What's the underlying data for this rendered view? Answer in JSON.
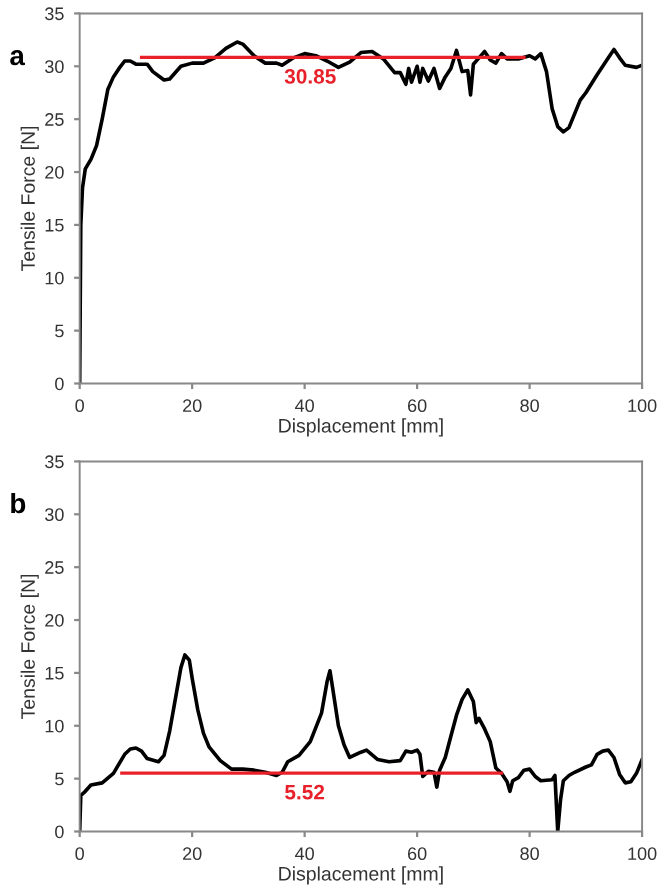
{
  "chart_data": [
    {
      "type": "line",
      "title": "a",
      "xlabel": "Displacement [mm]",
      "ylabel": "Tensile Force [N]",
      "xlim": [
        0,
        100
      ],
      "ylim": [
        0,
        35
      ],
      "xticks": [
        0,
        20,
        40,
        60,
        80,
        100
      ],
      "yticks": [
        0,
        5,
        10,
        15,
        20,
        25,
        30,
        35
      ],
      "grid": false,
      "series": [
        {
          "color": "#000000",
          "x": [
            0,
            0.2,
            0.5,
            1,
            2,
            3,
            4,
            5,
            6,
            7,
            8,
            9,
            10,
            12,
            13,
            15,
            16,
            18,
            20,
            22,
            24,
            26,
            28,
            29,
            31,
            33,
            35,
            36,
            38,
            40,
            42,
            44,
            46,
            48,
            50,
            52,
            54,
            56,
            57,
            58,
            58.5,
            59,
            60,
            60.5,
            61,
            62,
            63,
            64,
            65,
            66,
            67,
            68,
            69,
            69.5,
            70,
            71,
            72,
            73,
            74,
            75,
            76,
            78,
            80,
            81,
            82,
            83,
            84,
            85,
            86,
            87,
            88,
            89,
            90,
            92,
            94,
            95,
            96,
            97,
            99,
            100
          ],
          "values": [
            0,
            15,
            18.5,
            20.3,
            21.2,
            22.5,
            25,
            27.8,
            29,
            29.8,
            30.5,
            30.5,
            30.2,
            30.2,
            29.5,
            28.7,
            28.8,
            30,
            30.3,
            30.3,
            30.8,
            31.7,
            32.3,
            32.1,
            31,
            30.3,
            30.3,
            30.1,
            30.8,
            31.2,
            31,
            30.5,
            29.9,
            30.4,
            31.3,
            31.4,
            30.7,
            29.4,
            29.4,
            28.3,
            29.8,
            28.5,
            30,
            28.5,
            29.8,
            28.6,
            29.8,
            27.9,
            29,
            29.8,
            31.5,
            29.5,
            29.6,
            27.3,
            30.2,
            30.8,
            31.4,
            30.6,
            30.3,
            31.2,
            30.7,
            30.7,
            31,
            30.7,
            31.2,
            29.5,
            26,
            24.3,
            23.8,
            24.2,
            25.5,
            26.8,
            27.5,
            29.2,
            30.8,
            31.6,
            30.8,
            30.1,
            29.9,
            30.1
          ]
        },
        {
          "color": "#e8202a",
          "x": [
            11,
            79
          ],
          "values": [
            30.85,
            30.85
          ]
        }
      ],
      "annotations": [
        {
          "text": "30.85",
          "x": 41,
          "y": 30.85
        }
      ]
    },
    {
      "type": "line",
      "title": "b",
      "xlabel": "Displacement [mm]",
      "ylabel": "Tensile Force [N]",
      "xlim": [
        0,
        100
      ],
      "ylim": [
        0,
        35
      ],
      "xticks": [
        0,
        20,
        40,
        60,
        80,
        100
      ],
      "yticks": [
        0,
        5,
        10,
        15,
        20,
        25,
        30,
        35
      ],
      "grid": false,
      "series": [
        {
          "color": "#000000",
          "x": [
            0,
            0.2,
            1,
            2,
            4,
            6,
            8,
            9,
            10,
            11,
            12,
            14,
            15,
            16,
            17,
            18,
            18.7,
            19.5,
            20,
            21,
            22,
            23,
            25,
            27,
            29,
            31,
            33,
            35,
            36,
            37,
            39,
            41,
            43,
            44,
            44.5,
            45,
            46,
            47,
            48,
            50,
            51,
            53,
            55,
            57,
            58,
            59,
            60,
            60.5,
            61,
            62,
            63,
            63.5,
            64,
            65,
            66,
            67,
            68,
            69,
            70,
            70.5,
            71,
            72,
            73,
            74,
            75,
            76,
            76.5,
            77,
            78,
            79,
            80,
            81,
            82,
            84,
            84.5,
            85,
            85.5,
            86,
            87,
            88,
            90,
            91,
            92,
            93,
            94,
            95,
            96,
            97,
            98,
            99,
            100
          ],
          "values": [
            0,
            3.4,
            3.8,
            4.4,
            4.6,
            5.5,
            7.3,
            7.8,
            7.9,
            7.6,
            6.9,
            6.6,
            7.2,
            9.5,
            12.5,
            15.5,
            16.7,
            16.2,
            14.5,
            11.5,
            9.3,
            8,
            6.7,
            5.9,
            5.9,
            5.8,
            5.6,
            5.3,
            5.6,
            6.6,
            7.2,
            8.5,
            11.2,
            14.2,
            15.2,
            13.5,
            10,
            8.2,
            7,
            7.5,
            7.7,
            6.8,
            6.6,
            6.7,
            7.6,
            7.5,
            7.7,
            7.3,
            5.2,
            5.7,
            5.6,
            4.2,
            5.8,
            7,
            9,
            11,
            12.5,
            13.4,
            12.3,
            10.3,
            10.7,
            9.7,
            8.5,
            6,
            5.5,
            4.7,
            3.8,
            4.8,
            5.1,
            5.8,
            5.9,
            5.2,
            4.8,
            4.9,
            5.3,
            0,
            3,
            4.8,
            5.3,
            5.6,
            6.1,
            6.3,
            7.3,
            7.6,
            7.7,
            7,
            5.4,
            4.6,
            4.7,
            5.5,
            6.8
          ]
        },
        {
          "color": "#e8202a",
          "x": [
            7.5,
            75
          ],
          "values": [
            5.52,
            5.52
          ]
        }
      ],
      "annotations": [
        {
          "text": "5.52",
          "x": 40,
          "y": 5.52
        }
      ]
    }
  ]
}
